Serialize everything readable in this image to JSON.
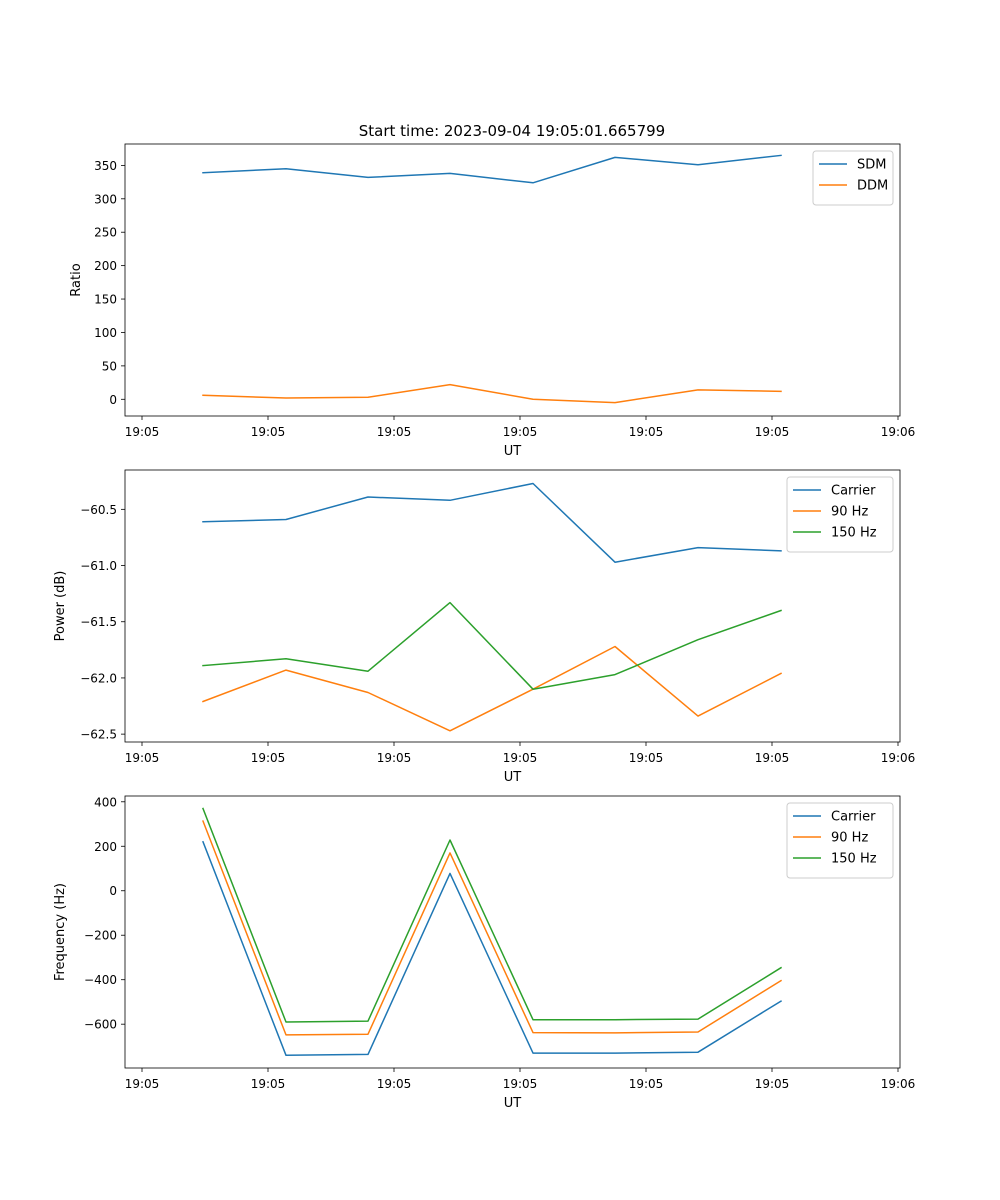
{
  "title": "Start time: 2023-09-04 19:05:01.665799",
  "colors": {
    "c0": "#1f77b4",
    "c1": "#ff7f0e",
    "c2": "#2ca02c"
  },
  "chart_data": [
    {
      "type": "line",
      "xlabel": "UT",
      "ylabel": "Ratio",
      "x_tick_labels": [
        "19:05",
        "19:05",
        "19:05",
        "19:05",
        "19:05",
        "19:05",
        "19:06"
      ],
      "y_ticks": [
        0,
        50,
        100,
        150,
        200,
        250,
        300,
        350
      ],
      "y_tick_labels": [
        "0",
        "50",
        "100",
        "150",
        "200",
        "250",
        "300",
        "350"
      ],
      "ylim": [
        -25,
        382
      ],
      "legend": "top-right",
      "series": [
        {
          "name": "SDM",
          "color": "#1f77b4",
          "values": [
            339,
            345,
            332,
            338,
            324,
            362,
            351,
            365
          ]
        },
        {
          "name": "DDM",
          "color": "#ff7f0e",
          "values": [
            6,
            2,
            3,
            22,
            0,
            -5,
            14,
            12
          ]
        }
      ]
    },
    {
      "type": "line",
      "xlabel": "UT",
      "ylabel": "Power (dB)",
      "x_tick_labels": [
        "19:05",
        "19:05",
        "19:05",
        "19:05",
        "19:05",
        "19:05",
        "19:06"
      ],
      "y_ticks": [
        -62.5,
        -62.0,
        -61.5,
        -61.0,
        -60.5
      ],
      "y_tick_labels": [
        "−62.5",
        "−62.0",
        "−61.5",
        "−61.0",
        "−60.5"
      ],
      "ylim": [
        -62.57,
        -60.15
      ],
      "legend": "top-right",
      "series": [
        {
          "name": "Carrier",
          "color": "#1f77b4",
          "values": [
            -60.61,
            -60.59,
            -60.39,
            -60.42,
            -60.27,
            -60.97,
            -60.84,
            -60.87
          ]
        },
        {
          "name": "90 Hz",
          "color": "#ff7f0e",
          "values": [
            -62.21,
            -61.93,
            -62.13,
            -62.47,
            -62.1,
            -61.72,
            -62.34,
            -61.96
          ]
        },
        {
          "name": "150 Hz",
          "color": "#2ca02c",
          "values": [
            -61.89,
            -61.83,
            -61.94,
            -61.33,
            -62.1,
            -61.97,
            -61.66,
            -61.4
          ]
        }
      ]
    },
    {
      "type": "line",
      "xlabel": "UT",
      "ylabel": "Frequency (Hz)",
      "x_tick_labels": [
        "19:05",
        "19:05",
        "19:05",
        "19:05",
        "19:05",
        "19:05",
        "19:06"
      ],
      "y_ticks": [
        -600,
        -400,
        -200,
        0,
        200,
        400
      ],
      "y_tick_labels": [
        "−600",
        "−400",
        "−200",
        "0",
        "200",
        "400"
      ],
      "ylim": [
        -797,
        426
      ],
      "legend": "top-right",
      "series": [
        {
          "name": "Carrier",
          "color": "#1f77b4",
          "values": [
            220,
            -740,
            -736,
            78,
            -730,
            -730,
            -726,
            -496
          ]
        },
        {
          "name": "90 Hz",
          "color": "#ff7f0e",
          "values": [
            313,
            -648,
            -645,
            170,
            -638,
            -639,
            -635,
            -404
          ]
        },
        {
          "name": "150 Hz",
          "color": "#2ca02c",
          "values": [
            370,
            -590,
            -586,
            228,
            -580,
            -580,
            -577,
            -346
          ]
        }
      ]
    }
  ]
}
